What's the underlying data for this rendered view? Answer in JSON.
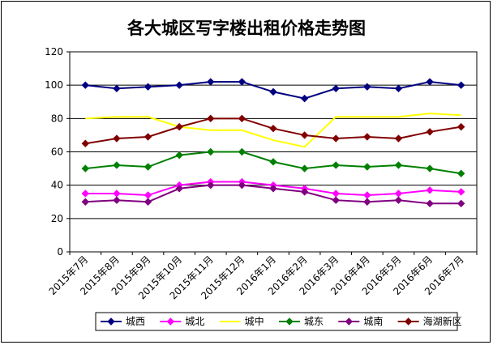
{
  "chart_data": {
    "type": "line",
    "title": "各大城区写字楼出租价格走势图",
    "xlabel": "",
    "ylabel": "",
    "categories": [
      "2015年7月",
      "2015年8月",
      "2015年9月",
      "2015年10月",
      "2015年11月",
      "2015年12月",
      "2016年1月",
      "2016年2月",
      "2016年3月",
      "2016年4月",
      "2016年5月",
      "2016年6月",
      "2016年7月"
    ],
    "ylim": [
      0,
      120
    ],
    "yticks": [
      0,
      20,
      40,
      60,
      80,
      100,
      120
    ],
    "grid": true,
    "legend_position": "bottom",
    "series": [
      {
        "name": "城西",
        "color": "#000080",
        "marker": "diamond",
        "values": [
          100,
          98,
          99,
          100,
          102,
          102,
          96,
          92,
          98,
          99,
          98,
          102,
          100
        ]
      },
      {
        "name": "城北",
        "color": "#FF00FF",
        "marker": "diamond",
        "values": [
          35,
          35,
          34,
          40,
          42,
          42,
          40,
          38,
          35,
          34,
          35,
          37,
          36
        ]
      },
      {
        "name": "城中",
        "color": "#FFFF00",
        "marker": "none",
        "values": [
          80,
          81,
          81,
          75,
          73,
          73,
          67,
          63,
          81,
          81,
          81,
          83,
          82
        ]
      },
      {
        "name": "城东",
        "color": "#008000",
        "marker": "diamond",
        "values": [
          50,
          52,
          51,
          58,
          60,
          60,
          54,
          50,
          52,
          51,
          52,
          50,
          47
        ]
      },
      {
        "name": "城南",
        "color": "#800080",
        "marker": "diamond",
        "values": [
          30,
          31,
          30,
          38,
          40,
          40,
          38,
          36,
          31,
          30,
          31,
          29,
          29
        ]
      },
      {
        "name": "海湖新区",
        "color": "#800000",
        "marker": "diamond",
        "values": [
          65,
          68,
          69,
          75,
          80,
          80,
          74,
          70,
          68,
          69,
          68,
          72,
          75
        ]
      }
    ]
  }
}
